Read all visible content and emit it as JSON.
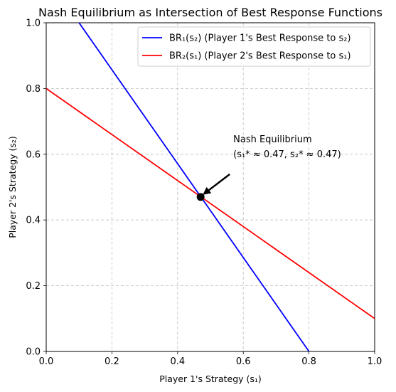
{
  "chart_data": {
    "type": "line",
    "title": "Nash Equilibrium as Intersection of Best Response Functions",
    "xlabel": "Player 1's Strategy (s₁)",
    "ylabel": "Player 2's Strategy (s₂)",
    "xlim": [
      0.0,
      1.0
    ],
    "ylim": [
      0.0,
      1.0
    ],
    "xticks": [
      "0.0",
      "0.2",
      "0.4",
      "0.6",
      "0.8",
      "1.0"
    ],
    "yticks": [
      "0.0",
      "0.2",
      "0.4",
      "0.6",
      "0.8",
      "1.0"
    ],
    "grid": true,
    "legend_position": "top-right",
    "series": [
      {
        "name": "BR₁(s₂) (Player 1's Best Response to s₂)",
        "color": "#0000ff",
        "points": [
          [
            0.8,
            0.0
          ],
          [
            0.1,
            1.0
          ]
        ]
      },
      {
        "name": "BR₂(s₁) (Player 2's Best Response to s₁)",
        "color": "#ff0000",
        "points": [
          [
            0.0,
            0.8
          ],
          [
            1.0,
            0.1
          ]
        ]
      }
    ],
    "equilibrium": {
      "x": 0.47,
      "y": 0.47,
      "label_line1": "Nash Equilibrium",
      "label_line2": "(s₁* ≈ 0.47, s₂* ≈ 0.47)"
    }
  }
}
